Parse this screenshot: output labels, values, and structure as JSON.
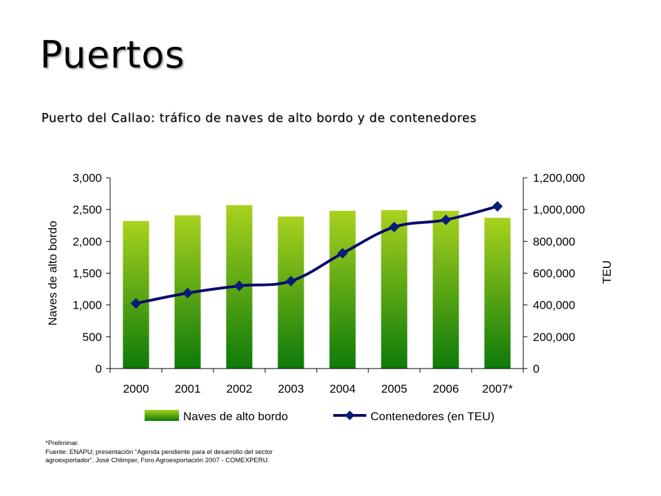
{
  "slide": {
    "title": "Puertos",
    "subtitle": "Puerto del Callao: tráfico de naves de alto bordo y de contenedores"
  },
  "footnote": {
    "line1": "*Preliminar.",
    "line2": "Fuente: ENAPU; presentación “Agenda pendiente para el desarrollo del sector",
    "line3": "agroexportador”. José Chlimper, Foro Agroexportación 2007 - COMEXPERU."
  },
  "colors": {
    "bar_top": "#a8d21e",
    "bar_bottom": "#0e7a0a",
    "line": "#0a0a6e",
    "marker": "#0a1e78"
  },
  "chart_data": {
    "type": "bar",
    "title": "Puerto del Callao: tráfico de naves de alto bordo y de contenedores",
    "categories": [
      "2000",
      "2001",
      "2002",
      "2003",
      "2004",
      "2005",
      "2006",
      "2007*"
    ],
    "series": [
      {
        "name": "Naves de alto bordo",
        "type": "bar",
        "axis": "left",
        "values": [
          2320,
          2410,
          2570,
          2390,
          2480,
          2490,
          2480,
          2370
        ]
      },
      {
        "name": "Contenedores (en TEU)",
        "type": "line",
        "axis": "right",
        "values": [
          410000,
          475000,
          520000,
          550000,
          725000,
          890000,
          935000,
          1020000
        ]
      }
    ],
    "ylabel": "Naves de alto bordo",
    "ylabel_right": "TEU",
    "xlabel": "",
    "ylim": [
      0,
      3000
    ],
    "ylim_right": [
      0,
      1200000
    ],
    "yticks": [
      "0",
      "500",
      "1,000",
      "1,500",
      "2,000",
      "2,500",
      "3,000"
    ],
    "yticks_right": [
      "0",
      "200,000",
      "400,000",
      "600,000",
      "800,000",
      "1,000,000",
      "1,200,000"
    ],
    "legend": [
      "Naves de alto bordo",
      "Contenedores (en TEU)"
    ],
    "legend_position": "bottom",
    "grid": false
  }
}
